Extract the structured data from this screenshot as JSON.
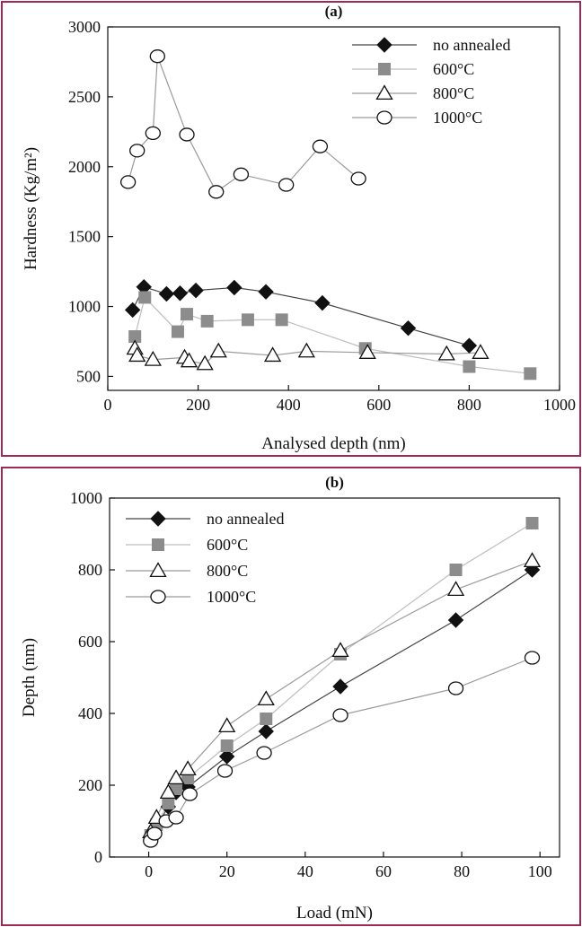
{
  "colors": {
    "frame": "#9c2a54",
    "black_series": "#111111",
    "gray_series": "#8c8c8c",
    "line_gray": "#9a9a9a"
  },
  "chart_data": [
    {
      "type": "scatter",
      "panel_label": "(a)",
      "xlabel": "Analysed depth (nm)",
      "ylabel": "Hardness (Kg/m²)",
      "xlim": [
        0,
        1000
      ],
      "ylim": [
        400,
        3000
      ],
      "xticks": [
        0,
        200,
        400,
        600,
        800,
        1000
      ],
      "yticks": [
        500,
        1000,
        1500,
        2000,
        2500,
        3000
      ],
      "grid": false,
      "legend_position": "top-right",
      "series": [
        {
          "name": "no annealed",
          "marker": "diamond",
          "x": [
            55,
            80,
            130,
            160,
            195,
            280,
            350,
            475,
            665,
            800
          ],
          "y": [
            975,
            1140,
            1090,
            1095,
            1115,
            1135,
            1105,
            1025,
            845,
            720
          ]
        },
        {
          "name": "600°C",
          "marker": "square",
          "x": [
            60,
            82,
            155,
            175,
            220,
            310,
            385,
            570,
            800,
            935
          ],
          "y": [
            785,
            1065,
            820,
            945,
            895,
            905,
            905,
            700,
            570,
            520
          ]
        },
        {
          "name": "800°C",
          "marker": "triangle",
          "x": [
            60,
            65,
            100,
            170,
            180,
            215,
            245,
            365,
            440,
            575,
            750,
            825
          ],
          "y": [
            700,
            650,
            620,
            635,
            610,
            590,
            680,
            650,
            680,
            670,
            660,
            670
          ]
        },
        {
          "name": "1000°C",
          "marker": "circle",
          "x": [
            45,
            65,
            100,
            110,
            175,
            240,
            295,
            395,
            470,
            555
          ],
          "y": [
            1890,
            2115,
            2240,
            2790,
            2230,
            1820,
            1945,
            1870,
            2145,
            1915
          ]
        }
      ]
    },
    {
      "type": "scatter",
      "panel_label": "(b)",
      "xlabel": "Load (mN)",
      "ylabel": "Depth (nm)",
      "xlim": [
        -10,
        105
      ],
      "ylim": [
        0,
        1000
      ],
      "xticks": [
        0,
        20,
        40,
        60,
        80,
        100
      ],
      "yticks": [
        0,
        200,
        400,
        600,
        800,
        1000
      ],
      "grid": false,
      "legend_position": "top-left",
      "series": [
        {
          "name": "no annealed",
          "marker": "diamond",
          "x": [
            0.5,
            2,
            5,
            7,
            10,
            20,
            30,
            49,
            78.5,
            98
          ],
          "y": [
            55,
            85,
            140,
            180,
            195,
            280,
            350,
            475,
            660,
            800
          ]
        },
        {
          "name": "600°C",
          "marker": "square",
          "x": [
            0.5,
            2,
            5,
            7,
            10,
            20,
            30,
            49,
            78.5,
            98
          ],
          "y": [
            60,
            90,
            150,
            190,
            220,
            310,
            385,
            565,
            800,
            930
          ]
        },
        {
          "name": "800°C",
          "marker": "triangle",
          "x": [
            0.5,
            2,
            5,
            7,
            10,
            20,
            30,
            49,
            78.5,
            98
          ],
          "y": [
            70,
            110,
            180,
            220,
            245,
            365,
            440,
            575,
            745,
            825
          ]
        },
        {
          "name": "1000°C",
          "marker": "circle",
          "x": [
            0.5,
            1.5,
            4.5,
            7,
            10.5,
            19.5,
            29.5,
            49,
            78.5,
            98
          ],
          "y": [
            45,
            65,
            100,
            110,
            175,
            240,
            290,
            395,
            470,
            555
          ]
        }
      ]
    }
  ]
}
